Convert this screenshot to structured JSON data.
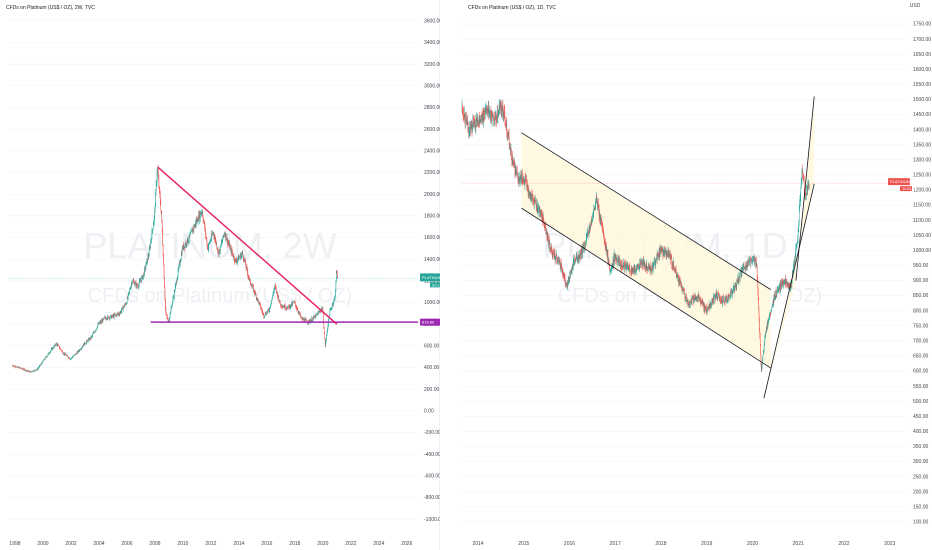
{
  "colors": {
    "up": "#26a69a",
    "down": "#ef5350",
    "trendline_left": "#e91e63",
    "support_line": "#9c27b0",
    "channel_lines": "#131722",
    "channel_fill": "#fff8dc",
    "price_tag_left": "#26a69a",
    "price_tag_right": "#ef5350",
    "support_tag": "#9c27b0",
    "grid": "#f0f3fa",
    "divider": "#e0e3eb"
  },
  "chart_data": [
    {
      "type": "candlestick",
      "title": "CFDs on Platinum (US$ / OZ), 2W, TVC",
      "watermark_symbol": "PLATINUM, 2W",
      "watermark_desc": "CFDs on Platinum (US$ / OZ)",
      "x_tick_labels": [
        "1998",
        "2000",
        "2002",
        "2004",
        "2006",
        "2008",
        "2010",
        "2012",
        "2014",
        "2016",
        "2018",
        "2020",
        "2022",
        "2024",
        "2026"
      ],
      "x_range": [
        1997.5,
        2026.8
      ],
      "y_tick_labels": [
        -1000,
        -800,
        -600,
        -400,
        -200,
        0,
        200,
        400,
        600,
        800,
        1000,
        1200,
        1400,
        1600,
        1800,
        2000,
        2200,
        2400,
        2600,
        2800,
        3000,
        3200,
        3400,
        3600
      ],
      "ylim": [
        -1100,
        3700
      ],
      "price_tag": {
        "label": "PLATINUM",
        "value": "1222.74",
        "sub": "2d 12h",
        "y": 1222.74
      },
      "support_tag": {
        "value": "818.80",
        "y": 818.8
      },
      "support_line": {
        "y": 818.8,
        "x_from": 2007.7,
        "x_to": 2026.8
      },
      "trendline": [
        [
          2008.2,
          2250
        ],
        [
          2021.0,
          800
        ]
      ],
      "price_path": [
        [
          1997.8,
          420
        ],
        [
          1998.5,
          390
        ],
        [
          1999.1,
          360
        ],
        [
          1999.6,
          380
        ],
        [
          2000.0,
          450
        ],
        [
          2000.6,
          560
        ],
        [
          2001.0,
          620
        ],
        [
          2001.5,
          530
        ],
        [
          2002.0,
          480
        ],
        [
          2002.5,
          540
        ],
        [
          2003.0,
          620
        ],
        [
          2003.5,
          680
        ],
        [
          2004.0,
          800
        ],
        [
          2004.5,
          860
        ],
        [
          2005.0,
          870
        ],
        [
          2005.5,
          900
        ],
        [
          2006.0,
          1000
        ],
        [
          2006.4,
          1200
        ],
        [
          2006.8,
          1150
        ],
        [
          2007.2,
          1250
        ],
        [
          2007.6,
          1450
        ],
        [
          2008.0,
          1800
        ],
        [
          2008.2,
          2250
        ],
        [
          2008.5,
          1800
        ],
        [
          2008.8,
          900
        ],
        [
          2009.0,
          820
        ],
        [
          2009.5,
          1150
        ],
        [
          2010.0,
          1500
        ],
        [
          2010.5,
          1600
        ],
        [
          2011.0,
          1750
        ],
        [
          2011.4,
          1850
        ],
        [
          2011.8,
          1500
        ],
        [
          2012.2,
          1650
        ],
        [
          2012.6,
          1450
        ],
        [
          2013.0,
          1650
        ],
        [
          2013.4,
          1500
        ],
        [
          2013.8,
          1380
        ],
        [
          2014.3,
          1450
        ],
        [
          2014.8,
          1200
        ],
        [
          2015.3,
          1050
        ],
        [
          2015.8,
          880
        ],
        [
          2016.2,
          930
        ],
        [
          2016.6,
          1150
        ],
        [
          2017.0,
          980
        ],
        [
          2017.5,
          950
        ],
        [
          2018.0,
          1000
        ],
        [
          2018.5,
          850
        ],
        [
          2019.0,
          820
        ],
        [
          2019.5,
          870
        ],
        [
          2020.0,
          950
        ],
        [
          2020.2,
          600
        ],
        [
          2020.5,
          900
        ],
        [
          2020.9,
          1050
        ],
        [
          2021.0,
          1280
        ],
        [
          2021.1,
          1222
        ]
      ]
    },
    {
      "type": "candlestick",
      "title": "CFDs on Platinum (US$ / OZ), 1D, TVC",
      "watermark_symbol": "PLATINUM, 1D",
      "watermark_desc": "CFDs on Platinum (US$ / OZ)",
      "x_tick_labels": [
        "2014",
        "2015",
        "2016",
        "2017",
        "2018",
        "2019",
        "2020",
        "2021",
        "2022",
        "2023"
      ],
      "x_range": [
        2013.65,
        2023.4
      ],
      "y_tick_labels": [
        100,
        150,
        200,
        250,
        300,
        350,
        400,
        450,
        500,
        550,
        600,
        650,
        700,
        750,
        800,
        850,
        900,
        950,
        1000,
        1050,
        1100,
        1150,
        1200,
        1250,
        1300,
        1350,
        1400,
        1450,
        1500,
        1550,
        1600,
        1650,
        1700,
        1750
      ],
      "ylim": [
        80,
        1790
      ],
      "currency_label": "USD",
      "price_tag": {
        "label": "PLATINUM",
        "value": "1222.74",
        "sub": "11:01:09",
        "y": 1222.74
      },
      "channel_down": {
        "upper": [
          [
            2014.95,
            1390
          ],
          [
            2020.4,
            870
          ]
        ],
        "lower": [
          [
            2014.95,
            1140
          ],
          [
            2020.4,
            610
          ]
        ]
      },
      "channel_up": {
        "lower": [
          [
            2020.25,
            510
          ],
          [
            2021.35,
            1220
          ]
        ],
        "upper": [
          [
            2020.95,
            900
          ],
          [
            2021.35,
            1510
          ]
        ]
      },
      "price_path": [
        [
          2013.65,
          1480
        ],
        [
          2013.8,
          1400
        ],
        [
          2014.0,
          1430
        ],
        [
          2014.2,
          1460
        ],
        [
          2014.4,
          1430
        ],
        [
          2014.5,
          1480
        ],
        [
          2014.6,
          1440
        ],
        [
          2014.75,
          1300
        ],
        [
          2014.9,
          1230
        ],
        [
          2015.0,
          1240
        ],
        [
          2015.2,
          1170
        ],
        [
          2015.4,
          1120
        ],
        [
          2015.6,
          1000
        ],
        [
          2015.8,
          960
        ],
        [
          2015.95,
          880
        ],
        [
          2016.1,
          960
        ],
        [
          2016.3,
          1000
        ],
        [
          2016.5,
          1100
        ],
        [
          2016.6,
          1170
        ],
        [
          2016.75,
          1050
        ],
        [
          2016.9,
          930
        ],
        [
          2017.0,
          980
        ],
        [
          2017.2,
          950
        ],
        [
          2017.4,
          930
        ],
        [
          2017.6,
          960
        ],
        [
          2017.8,
          935
        ],
        [
          2018.0,
          1000
        ],
        [
          2018.2,
          980
        ],
        [
          2018.4,
          900
        ],
        [
          2018.6,
          820
        ],
        [
          2018.8,
          850
        ],
        [
          2019.0,
          800
        ],
        [
          2019.2,
          850
        ],
        [
          2019.4,
          830
        ],
        [
          2019.6,
          870
        ],
        [
          2019.8,
          940
        ],
        [
          2020.0,
          970
        ],
        [
          2020.1,
          960
        ],
        [
          2020.2,
          600
        ],
        [
          2020.3,
          730
        ],
        [
          2020.5,
          850
        ],
        [
          2020.7,
          900
        ],
        [
          2020.85,
          880
        ],
        [
          2021.0,
          1050
        ],
        [
          2021.1,
          1280
        ],
        [
          2021.15,
          1180
        ],
        [
          2021.25,
          1222
        ]
      ]
    }
  ]
}
